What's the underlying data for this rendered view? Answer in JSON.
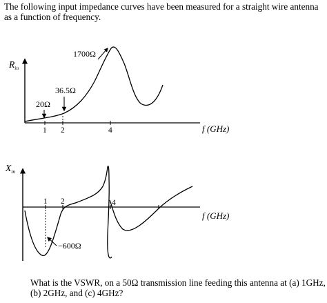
{
  "intro_text": "The following input impedance curves have been measured for a straight wire antenna as a function of frequency.",
  "question_text": "What is the VSWR, on a 50Ω transmission line feeding this antenna at (a) 1GHz, (b) 2GHz, and (c) 4GHz?",
  "top_plot": {
    "y_axis_label": "R",
    "y_axis_subscript": "in",
    "x_axis_label": "f (GHz)",
    "x_ticks": [
      "1",
      "2",
      "4"
    ],
    "annotations": {
      "peak": "1700Ω",
      "at_2ghz": "36.5Ω",
      "at_1ghz": "20Ω"
    }
  },
  "bottom_plot": {
    "y_axis_label": "X",
    "y_axis_subscript": "in",
    "x_axis_label": "f (GHz)",
    "x_ticks": [
      "1",
      "2",
      "4"
    ],
    "annotations": {
      "at_1ghz": "−600Ω"
    }
  }
}
